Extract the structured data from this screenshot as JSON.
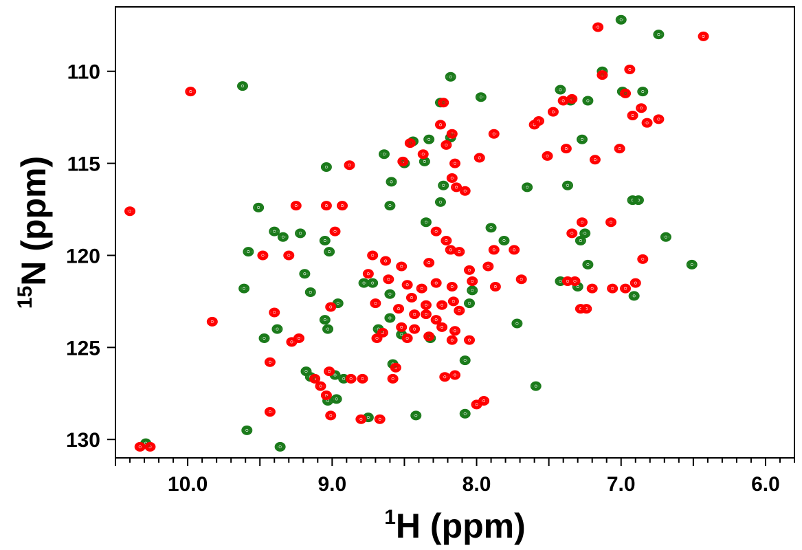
{
  "chart_data": {
    "type": "scatter",
    "subtype": "2D NMR HSQC overlay (contour peaks)",
    "title": "",
    "xlabel": {
      "sup": "1",
      "main": "H (ppm)"
    },
    "ylabel": {
      "sup": "15",
      "main": "N (ppm)"
    },
    "xlim": [
      10.5,
      5.8
    ],
    "ylim": [
      106.5,
      131.0
    ],
    "x_reversed": true,
    "y_reversed": true,
    "xticks": [
      10.0,
      9.0,
      8.0,
      7.0,
      6.0
    ],
    "xtick_labels": [
      "10.0",
      "9.0",
      "8.0",
      "7.0",
      "6.0"
    ],
    "x_minor_step": 0.1,
    "yticks": [
      110,
      115,
      120,
      125,
      130
    ],
    "ytick_labels": [
      "110",
      "115",
      "120",
      "125",
      "130"
    ],
    "grid": false,
    "legend": "none",
    "series": [
      {
        "color": "#1a7a1a",
        "points": [
          [
            9.62,
            110.8
          ],
          [
            8.18,
            110.3
          ],
          [
            8.25,
            111.7
          ],
          [
            7.97,
            111.4
          ],
          [
            7.42,
            111.0
          ],
          [
            7.35,
            111.6
          ],
          [
            7.23,
            111.6
          ],
          [
            7.13,
            110.0
          ],
          [
            6.99,
            111.1
          ],
          [
            6.85,
            111.1
          ],
          [
            7.0,
            107.2
          ],
          [
            6.74,
            108.0
          ],
          [
            8.44,
            113.8
          ],
          [
            8.33,
            113.7
          ],
          [
            8.18,
            113.6
          ],
          [
            7.27,
            113.7
          ],
          [
            8.64,
            114.5
          ],
          [
            8.5,
            115.0
          ],
          [
            8.36,
            114.9
          ],
          [
            9.04,
            115.2
          ],
          [
            8.59,
            116.0
          ],
          [
            8.23,
            116.2
          ],
          [
            7.65,
            116.3
          ],
          [
            7.37,
            116.2
          ],
          [
            8.25,
            117.1
          ],
          [
            8.6,
            117.3
          ],
          [
            6.92,
            117.0
          ],
          [
            6.88,
            117.0
          ],
          [
            9.51,
            117.4
          ],
          [
            9.4,
            118.7
          ],
          [
            9.34,
            119.0
          ],
          [
            9.22,
            118.8
          ],
          [
            9.05,
            119.2
          ],
          [
            9.02,
            119.8
          ],
          [
            9.58,
            119.8
          ],
          [
            8.35,
            118.2
          ],
          [
            7.9,
            118.5
          ],
          [
            7.81,
            119.2
          ],
          [
            7.25,
            118.8
          ],
          [
            7.28,
            119.2
          ],
          [
            6.69,
            119.0
          ],
          [
            7.23,
            120.5
          ],
          [
            6.51,
            120.5
          ],
          [
            9.19,
            121.0
          ],
          [
            8.78,
            121.5
          ],
          [
            8.72,
            121.5
          ],
          [
            8.6,
            122.1
          ],
          [
            8.03,
            121.9
          ],
          [
            8.05,
            122.6
          ],
          [
            7.42,
            121.4
          ],
          [
            7.3,
            121.7
          ],
          [
            6.91,
            122.2
          ],
          [
            9.15,
            122.0
          ],
          [
            8.96,
            122.6
          ],
          [
            9.61,
            121.8
          ],
          [
            9.05,
            123.5
          ],
          [
            9.03,
            124.0
          ],
          [
            8.6,
            123.4
          ],
          [
            8.68,
            124.0
          ],
          [
            8.52,
            124.3
          ],
          [
            8.32,
            124.5
          ],
          [
            7.72,
            123.7
          ],
          [
            9.47,
            124.5
          ],
          [
            9.38,
            124.0
          ],
          [
            8.58,
            125.9
          ],
          [
            8.08,
            125.7
          ],
          [
            9.18,
            126.3
          ],
          [
            9.15,
            126.6
          ],
          [
            8.98,
            126.5
          ],
          [
            8.92,
            126.7
          ],
          [
            8.75,
            128.8
          ],
          [
            8.42,
            128.7
          ],
          [
            8.08,
            128.6
          ],
          [
            9.03,
            127.9
          ],
          [
            8.97,
            127.8
          ],
          [
            7.59,
            127.1
          ],
          [
            9.59,
            129.5
          ],
          [
            9.36,
            130.4
          ],
          [
            10.29,
            130.2
          ]
        ]
      },
      {
        "color": "#ff0000",
        "points": [
          [
            9.98,
            111.1
          ],
          [
            8.23,
            111.7
          ],
          [
            8.25,
            112.9
          ],
          [
            8.17,
            113.4
          ],
          [
            8.21,
            114.0
          ],
          [
            7.98,
            114.7
          ],
          [
            7.88,
            113.4
          ],
          [
            7.57,
            112.7
          ],
          [
            7.47,
            112.2
          ],
          [
            7.4,
            111.6
          ],
          [
            7.34,
            111.5
          ],
          [
            7.6,
            112.9
          ],
          [
            7.13,
            110.2
          ],
          [
            7.16,
            107.6
          ],
          [
            6.43,
            108.1
          ],
          [
            6.94,
            109.9
          ],
          [
            6.97,
            111.2
          ],
          [
            6.86,
            112.0
          ],
          [
            6.82,
            112.8
          ],
          [
            6.74,
            112.6
          ],
          [
            6.92,
            112.4
          ],
          [
            7.01,
            114.2
          ],
          [
            8.46,
            113.9
          ],
          [
            8.51,
            114.9
          ],
          [
            8.37,
            114.5
          ],
          [
            8.15,
            115.0
          ],
          [
            7.38,
            114.2
          ],
          [
            7.18,
            114.8
          ],
          [
            7.51,
            114.6
          ],
          [
            8.17,
            115.8
          ],
          [
            8.14,
            116.3
          ],
          [
            8.08,
            116.5
          ],
          [
            8.88,
            115.1
          ],
          [
            9.25,
            117.3
          ],
          [
            9.04,
            117.3
          ],
          [
            8.93,
            117.3
          ],
          [
            8.98,
            118.7
          ],
          [
            9.3,
            120.0
          ],
          [
            9.48,
            120.0
          ],
          [
            8.28,
            118.7
          ],
          [
            8.21,
            119.2
          ],
          [
            8.18,
            119.7
          ],
          [
            8.12,
            119.8
          ],
          [
            7.88,
            119.7
          ],
          [
            7.74,
            119.7
          ],
          [
            7.34,
            118.8
          ],
          [
            7.27,
            118.2
          ],
          [
            7.07,
            118.2
          ],
          [
            6.85,
            120.2
          ],
          [
            8.72,
            120.0
          ],
          [
            8.63,
            120.3
          ],
          [
            8.52,
            120.6
          ],
          [
            8.33,
            120.4
          ],
          [
            8.05,
            120.8
          ],
          [
            7.92,
            120.6
          ],
          [
            8.75,
            121.0
          ],
          [
            8.61,
            121.3
          ],
          [
            8.48,
            121.6
          ],
          [
            8.38,
            121.8
          ],
          [
            8.28,
            121.5
          ],
          [
            8.17,
            121.7
          ],
          [
            8.03,
            121.4
          ],
          [
            7.87,
            121.7
          ],
          [
            7.69,
            121.3
          ],
          [
            7.37,
            121.4
          ],
          [
            7.32,
            121.4
          ],
          [
            7.2,
            121.8
          ],
          [
            7.06,
            121.8
          ],
          [
            6.97,
            121.8
          ],
          [
            6.9,
            121.5
          ],
          [
            8.45,
            122.3
          ],
          [
            8.35,
            122.7
          ],
          [
            8.24,
            122.7
          ],
          [
            8.16,
            122.5
          ],
          [
            8.7,
            122.6
          ],
          [
            8.54,
            122.9
          ],
          [
            8.43,
            123.2
          ],
          [
            8.35,
            123.2
          ],
          [
            8.28,
            123.5
          ],
          [
            8.12,
            123.0
          ],
          [
            7.28,
            122.9
          ],
          [
            7.24,
            122.9
          ],
          [
            8.65,
            124.2
          ],
          [
            8.52,
            123.9
          ],
          [
            8.43,
            124.0
          ],
          [
            8.24,
            123.9
          ],
          [
            8.15,
            124.1
          ],
          [
            8.69,
            124.5
          ],
          [
            8.48,
            124.5
          ],
          [
            8.33,
            124.4
          ],
          [
            8.17,
            124.6
          ],
          [
            8.05,
            124.6
          ],
          [
            9.01,
            122.8
          ],
          [
            9.4,
            123.1
          ],
          [
            9.23,
            124.5
          ],
          [
            9.28,
            124.7
          ],
          [
            9.43,
            125.8
          ],
          [
            9.02,
            126.3
          ],
          [
            9.12,
            126.7
          ],
          [
            8.87,
            126.7
          ],
          [
            8.79,
            126.7
          ],
          [
            9.08,
            127.1
          ],
          [
            9.04,
            127.6
          ],
          [
            9.01,
            128.7
          ],
          [
            8.8,
            128.9
          ],
          [
            8.67,
            128.9
          ],
          [
            8.22,
            126.6
          ],
          [
            8.15,
            126.5
          ],
          [
            8.0,
            128.1
          ],
          [
            7.95,
            127.9
          ],
          [
            8.56,
            126.1
          ],
          [
            8.58,
            126.7
          ],
          [
            9.43,
            128.5
          ],
          [
            9.83,
            123.6
          ],
          [
            10.33,
            130.4
          ],
          [
            10.26,
            130.4
          ],
          [
            10.4,
            117.6
          ]
        ]
      }
    ]
  }
}
